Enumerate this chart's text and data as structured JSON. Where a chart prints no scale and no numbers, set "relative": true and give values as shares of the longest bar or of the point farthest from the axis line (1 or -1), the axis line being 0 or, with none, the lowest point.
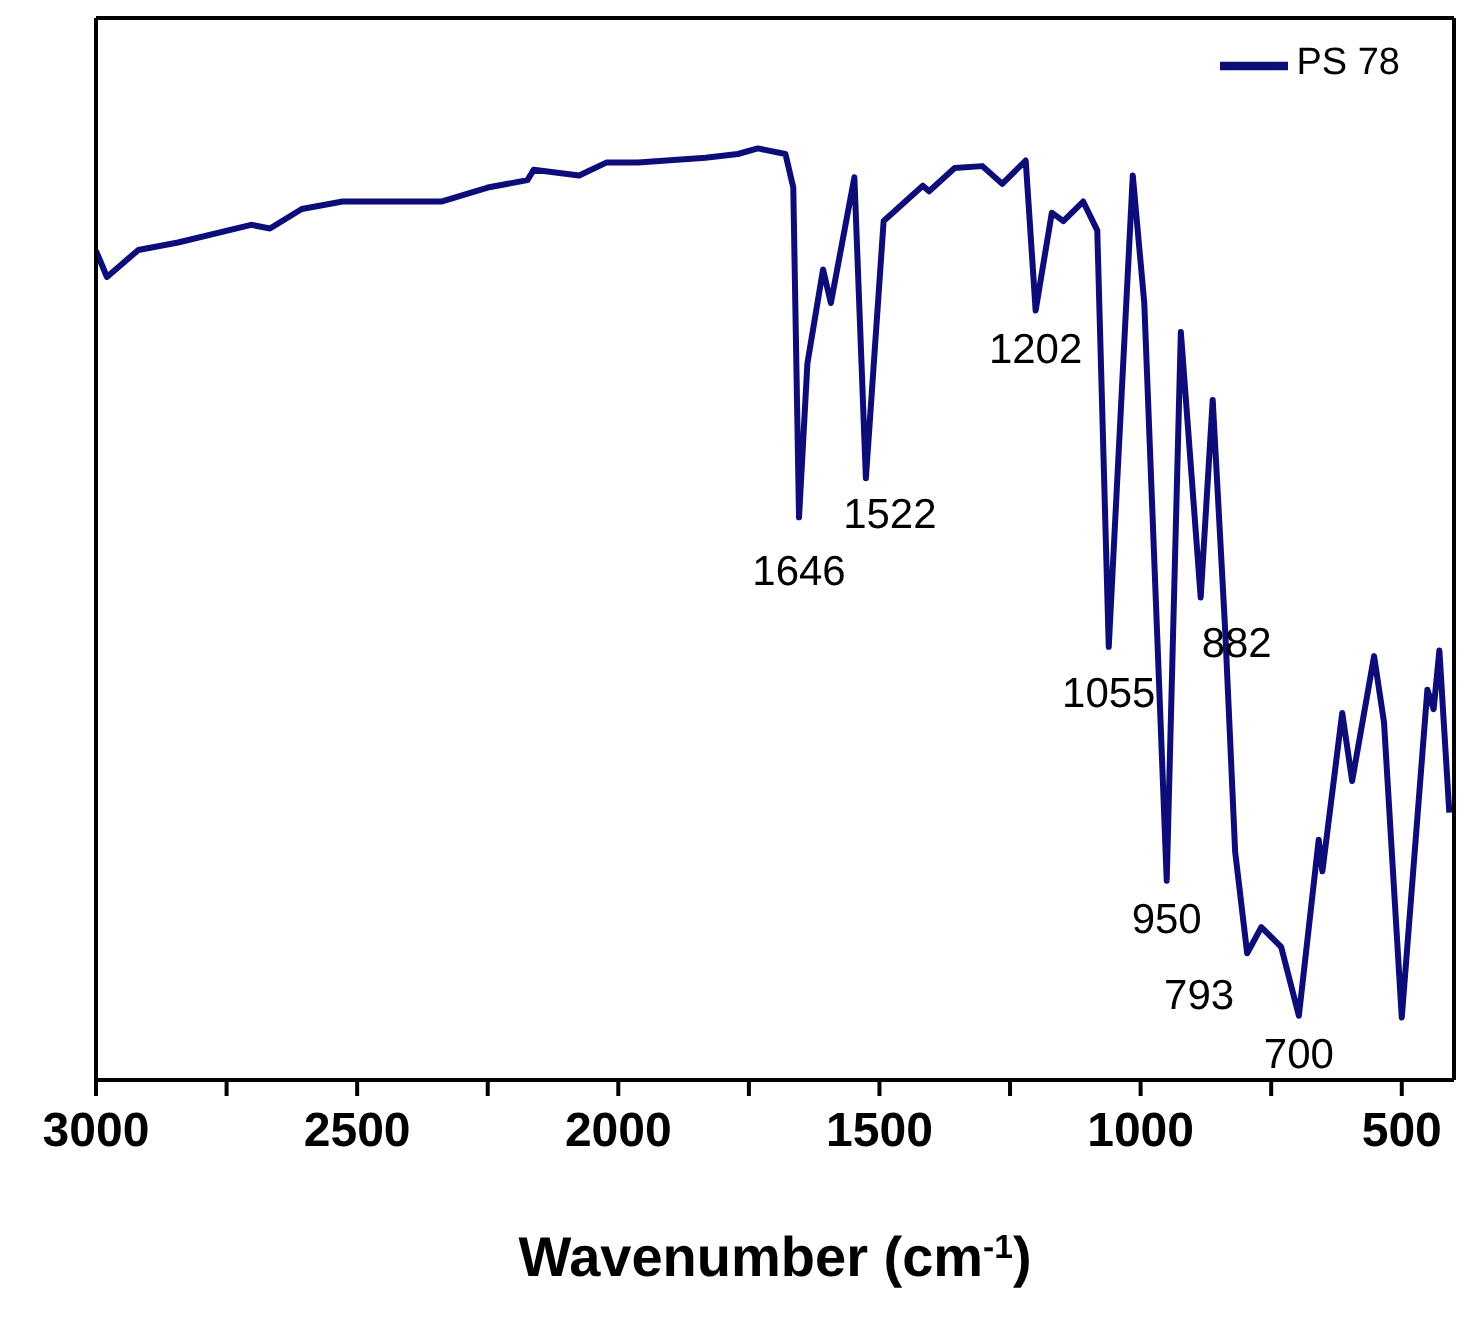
{
  "chart_data": {
    "type": "line",
    "relative": true,
    "xlabel": "Wavenumber (cm$^{-1}$)",
    "xlim": [
      3000,
      400
    ],
    "xticks": [
      3000,
      {
        "value": 2750,
        "label": null
      },
      2500,
      {
        "value": 2250,
        "label": null
      },
      2000,
      {
        "value": 1750,
        "label": null
      },
      1500,
      {
        "value": 1250,
        "label": null
      },
      1000,
      {
        "value": 750,
        "label": null
      },
      500
    ],
    "legend": "top right",
    "marker": "none",
    "line_style": "solid",
    "grid": false,
    "series": [
      {
        "name": "PS 78",
        "color": "#0d0d7a",
        "x": [
          3000,
          2979,
          2919,
          2843,
          2703,
          2667,
          2606,
          2528,
          2339,
          2250,
          2174,
          2162,
          2075,
          2022,
          1962,
          1833,
          1771,
          1733,
          1680,
          1665,
          1654,
          1638,
          1608,
          1593,
          1548,
          1526,
          1492,
          1417,
          1405,
          1356,
          1303,
          1265,
          1220,
          1201,
          1170,
          1148,
          1110,
          1083,
          1061,
          1015,
          993,
          950,
          923,
          885,
          862,
          838,
          819,
          796,
          769,
          731,
          697,
          659,
          652,
          614,
          595,
          553,
          534,
          500,
          451,
          439,
          428,
          409
        ],
        "values": [
          0.89,
          0.862,
          0.891,
          0.899,
          0.918,
          0.914,
          0.935,
          0.943,
          0.943,
          0.958,
          0.966,
          0.977,
          0.971,
          0.985,
          0.985,
          0.99,
          0.994,
          1.0,
          0.994,
          0.958,
          0.604,
          0.769,
          0.87,
          0.834,
          0.969,
          0.646,
          0.922,
          0.96,
          0.954,
          0.979,
          0.981,
          0.962,
          0.987,
          0.826,
          0.931,
          0.922,
          0.943,
          0.912,
          0.465,
          0.971,
          0.834,
          0.214,
          0.803,
          0.518,
          0.73,
          0.482,
          0.245,
          0.136,
          0.164,
          0.143,
          0.069,
          0.258,
          0.224,
          0.394,
          0.321,
          0.455,
          0.384,
          0.067,
          0.419,
          0.398,
          0.461,
          0.287
        ]
      }
    ],
    "annotations": [
      {
        "text": "1646",
        "x": 1654,
        "y": 0.604
      },
      {
        "text": "1522",
        "x": 1526,
        "y": 0.646
      },
      {
        "text": "1202",
        "x": 1201,
        "y": 0.826
      },
      {
        "text": "1055",
        "x": 1061,
        "y": 0.465
      },
      {
        "text": "950",
        "x": 950,
        "y": 0.214
      },
      {
        "text": "882",
        "x": 885,
        "y": 0.518
      },
      {
        "text": "793",
        "x": 796,
        "y": 0.136
      },
      {
        "text": "700",
        "x": 697,
        "y": 0.069
      }
    ]
  }
}
